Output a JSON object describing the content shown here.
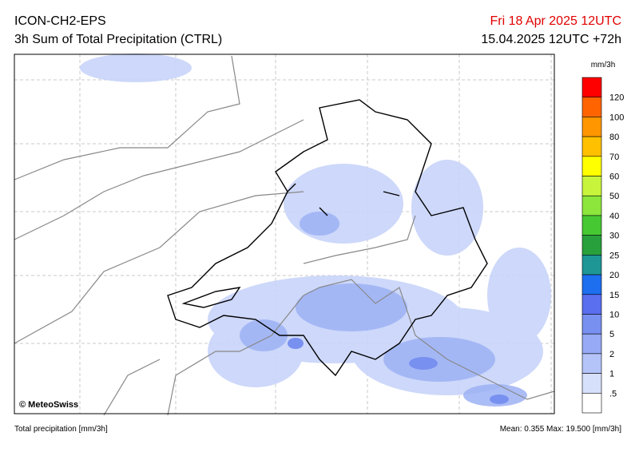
{
  "header": {
    "model": "ICON-CH2-EPS",
    "product": "3h Sum of Total Precipitation (CTRL)",
    "valid": "Fri 18 Apr 2025 12UTC",
    "init": "15.04.2025 12UTC +72h"
  },
  "map": {
    "credit": "© MeteoSwiss"
  },
  "legend": {
    "unit": "mm/3h",
    "labels": [
      "120",
      "100",
      "80",
      "70",
      "60",
      "50",
      "40",
      "30",
      "25",
      "20",
      "15",
      "10",
      "5",
      "2",
      "1",
      ".5"
    ],
    "colors": [
      "#ff0000",
      "#ff6400",
      "#ff9600",
      "#ffc000",
      "#ffff00",
      "#c8f53c",
      "#8ce63c",
      "#46c832",
      "#28a03c",
      "#1e9696",
      "#1e6ef0",
      "#5a6ef0",
      "#7890f0",
      "#96aaf5",
      "#b4c4f8",
      "#d7e0fb",
      "#ffffff"
    ]
  },
  "footer": {
    "variable": "Total precipitation [mm/3h]",
    "stats": "Mean:  0.355 Max: 19.500 [mm/3h]"
  }
}
